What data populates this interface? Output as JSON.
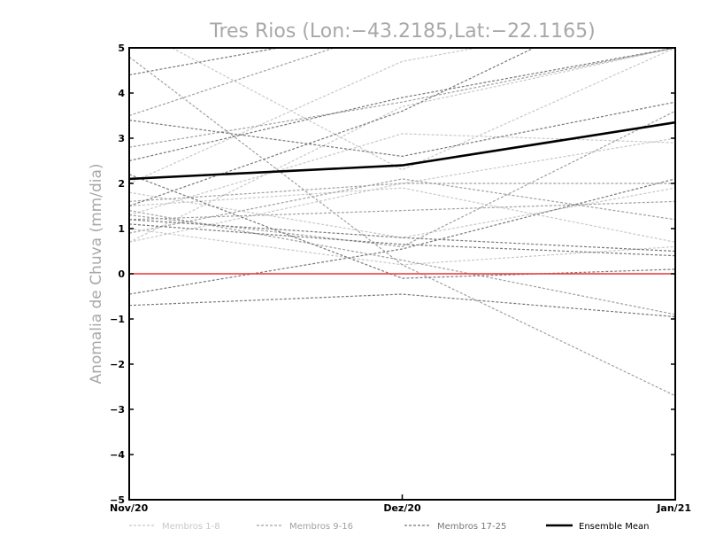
{
  "chart_data": {
    "type": "line",
    "title": "Tres Rios (Lon:−43.2185,Lat:−22.1165)",
    "ylabel": "Anomalia de Chuva (mm/dia)",
    "xlabel": "",
    "categories": [
      "Nov/20",
      "Dez/20",
      "Jan/21"
    ],
    "ylim": [
      -5,
      5
    ],
    "yticks": [
      "5",
      "4",
      "3",
      "2",
      "1",
      "0",
      "−1",
      "−2",
      "−3",
      "−4",
      "−5"
    ],
    "ytick_values": [
      5,
      4,
      3,
      2,
      1,
      0,
      -1,
      -2,
      -3,
      -4,
      -5
    ],
    "reference_line": {
      "y": 0,
      "color": "#ee3333"
    },
    "grid": false,
    "legend_position": "bottom",
    "legend": [
      {
        "label": "Membros 1-8",
        "color": "#c8c8c8",
        "style": "dashed"
      },
      {
        "label": "Membros 9-16",
        "color": "#a0a0a0",
        "style": "dashed"
      },
      {
        "label": "Membros 17-25",
        "color": "#787878",
        "style": "dashed"
      },
      {
        "label": "Ensemble Mean",
        "color": "#000000",
        "style": "solid"
      }
    ],
    "member_groups": [
      {
        "color": "#c8c8c8",
        "members": [
          [
            2.0,
            4.7,
            5.8
          ],
          [
            1.3,
            3.1,
            2.9
          ],
          [
            0.7,
            2.0,
            3.0
          ],
          [
            1.5,
            1.9,
            0.7
          ],
          [
            5.5,
            2.3,
            5.0
          ],
          [
            1.0,
            0.2,
            0.6
          ],
          [
            1.8,
            0.8,
            1.9
          ],
          [
            0.7,
            3.7,
            5.0
          ]
        ]
      },
      {
        "color": "#a0a0a0",
        "members": [
          [
            4.8,
            0.2,
            -2.7
          ],
          [
            1.2,
            1.4,
            1.6
          ],
          [
            1.4,
            0.3,
            -0.9
          ],
          [
            2.8,
            3.8,
            5.0
          ],
          [
            0.9,
            2.1,
            1.2
          ],
          [
            1.3,
            0.6,
            3.6
          ],
          [
            1.6,
            2.0,
            2.0
          ],
          [
            3.5,
            5.5,
            6.0
          ]
        ]
      },
      {
        "color": "#787878",
        "members": [
          [
            2.5,
            3.9,
            5.0
          ],
          [
            3.4,
            2.6,
            3.8
          ],
          [
            2.2,
            -0.1,
            0.1
          ],
          [
            -0.7,
            -0.45,
            -0.95
          ],
          [
            1.5,
            3.6,
            6.5
          ],
          [
            1.2,
            0.8,
            0.5
          ],
          [
            -0.45,
            0.55,
            2.1
          ],
          [
            4.4,
            5.5,
            5.8
          ],
          [
            1.1,
            0.65,
            0.4
          ]
        ]
      }
    ],
    "series": [
      {
        "name": "Ensemble Mean",
        "values": [
          2.1,
          2.4,
          3.35
        ],
        "color": "#000000"
      }
    ]
  }
}
